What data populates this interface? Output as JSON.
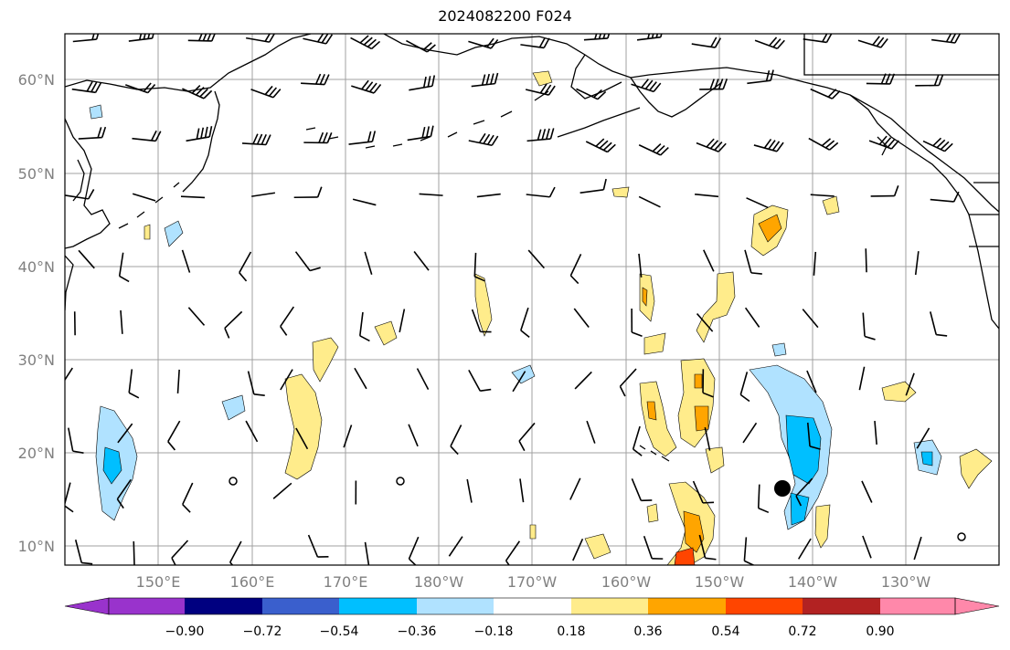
{
  "title": "2024082200 F024",
  "lat_labels": [
    "60°N",
    "50°N",
    "40°N",
    "30°N",
    "20°N",
    "10°N"
  ],
  "lon_labels": [
    "150°E",
    "160°E",
    "170°E",
    "180°W",
    "170°W",
    "160°W",
    "150°W",
    "140°W",
    "130°W"
  ],
  "colorbar": {
    "tick_labels": [
      "−0.90",
      "−0.72",
      "−0.54",
      "−0.36",
      "−0.18",
      "0.18",
      "0.36",
      "0.54",
      "0.72",
      "0.90"
    ],
    "colors": [
      "#9933cc",
      "#000080",
      "#3a5fcd",
      "#00bfff",
      "#b0e2ff",
      "#ffffff",
      "#ffec8b",
      "#ffa500",
      "#ff4500",
      "#b22222",
      "#ff88aa"
    ]
  },
  "map_colors": {
    "light_blue": "#b0e2ff",
    "cyan": "#00bfff",
    "light_yellow": "#ffec8b",
    "orange": "#ffa500",
    "red_orange": "#ff4500",
    "gridline": "#a0a0a0"
  },
  "symbols": {
    "storm_marker": "filled-circle",
    "calm_wind": "open-circle"
  }
}
